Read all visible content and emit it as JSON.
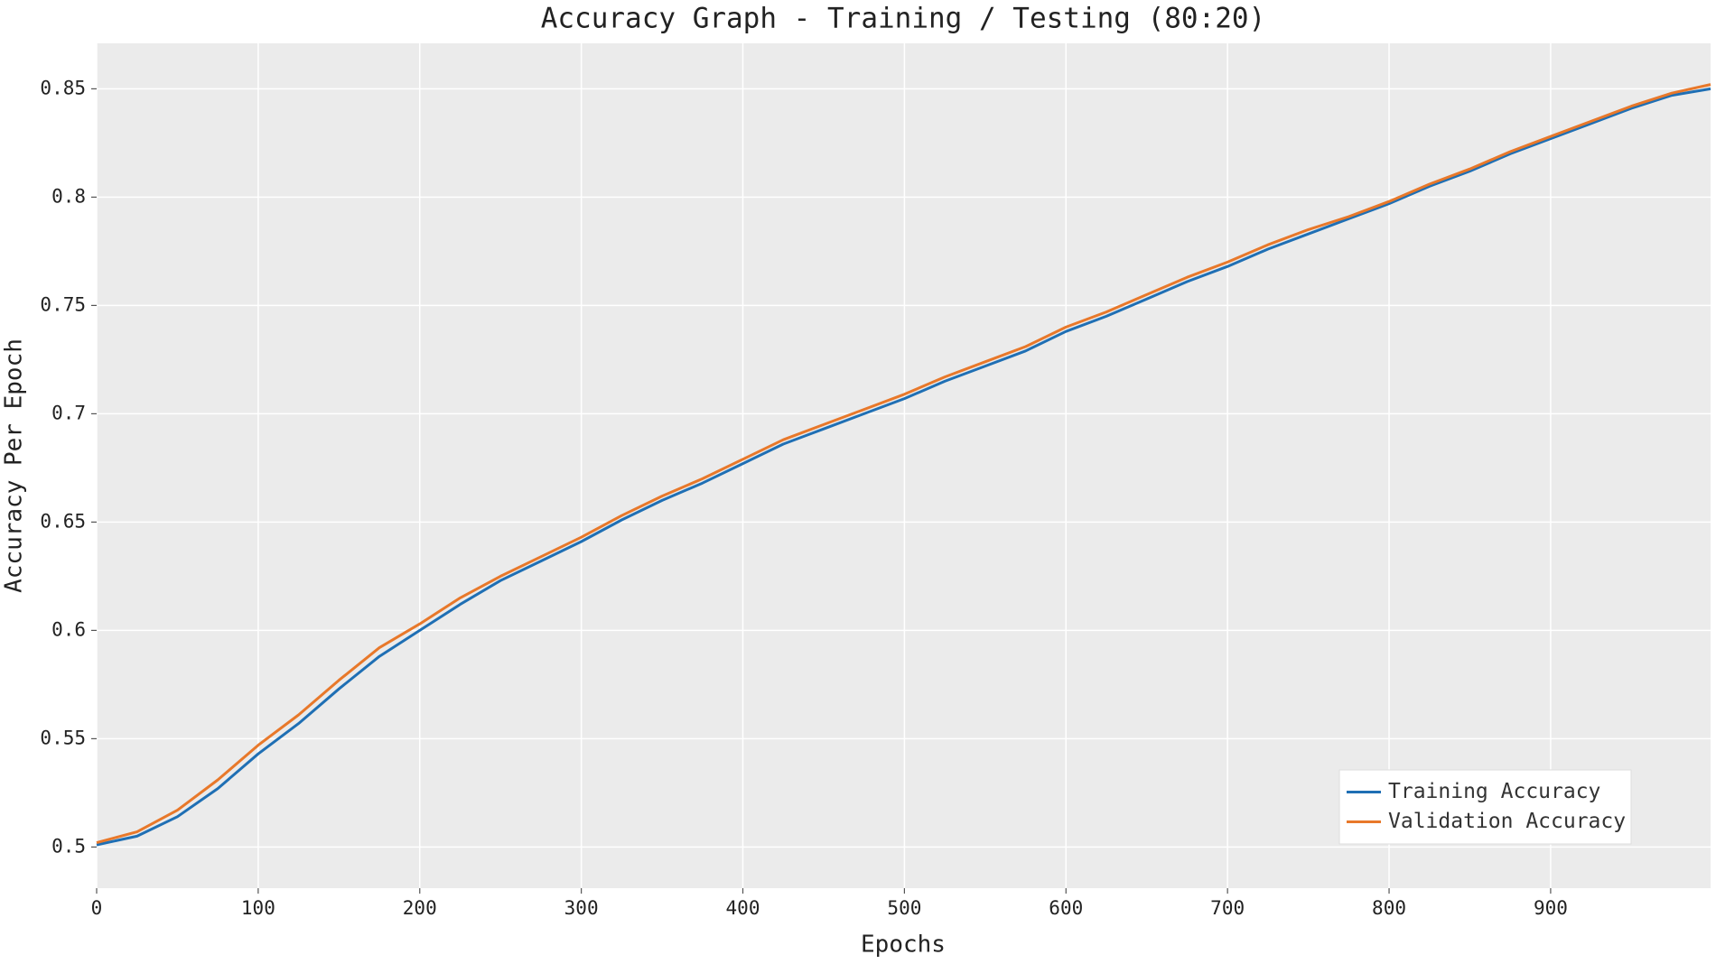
{
  "chart_data": {
    "type": "line",
    "title": "Accuracy Graph - Training / Testing (80:20)",
    "x_label": "Epochs",
    "y_label": "Accuracy Per Epoch",
    "x": [
      0,
      25,
      50,
      75,
      100,
      125,
      150,
      175,
      200,
      225,
      250,
      275,
      300,
      325,
      350,
      375,
      400,
      425,
      450,
      475,
      500,
      525,
      550,
      575,
      600,
      625,
      650,
      675,
      700,
      725,
      750,
      775,
      800,
      825,
      850,
      875,
      900,
      925,
      950,
      975,
      999
    ],
    "series": [
      {
        "name": "Training Accuracy",
        "color": "#1f6fb4",
        "values": [
          0.501,
          0.505,
          0.514,
          0.527,
          0.543,
          0.557,
          0.573,
          0.588,
          0.6,
          0.612,
          0.623,
          0.632,
          0.641,
          0.651,
          0.66,
          0.668,
          0.677,
          0.686,
          0.693,
          0.7,
          0.707,
          0.715,
          0.722,
          0.729,
          0.738,
          0.745,
          0.753,
          0.761,
          0.768,
          0.776,
          0.783,
          0.79,
          0.797,
          0.805,
          0.812,
          0.82,
          0.827,
          0.834,
          0.841,
          0.847,
          0.85
        ]
      },
      {
        "name": "Validation Accuracy",
        "color": "#e8782a",
        "values": [
          0.502,
          0.507,
          0.517,
          0.531,
          0.547,
          0.561,
          0.577,
          0.592,
          0.603,
          0.615,
          0.625,
          0.634,
          0.643,
          0.653,
          0.662,
          0.67,
          0.679,
          0.688,
          0.695,
          0.702,
          0.709,
          0.717,
          0.724,
          0.731,
          0.74,
          0.747,
          0.755,
          0.763,
          0.77,
          0.778,
          0.785,
          0.791,
          0.798,
          0.806,
          0.813,
          0.821,
          0.828,
          0.835,
          0.842,
          0.848,
          0.852
        ]
      }
    ],
    "xlim": [
      0,
      999
    ],
    "xticks": [
      0,
      100,
      200,
      300,
      400,
      500,
      600,
      700,
      800,
      900
    ],
    "ylim": [
      0.481,
      0.871
    ],
    "yticks": [
      0.5,
      0.55,
      0.6,
      0.65,
      0.7,
      0.75,
      0.8,
      0.85
    ],
    "grid": true,
    "legend": "lower right"
  }
}
